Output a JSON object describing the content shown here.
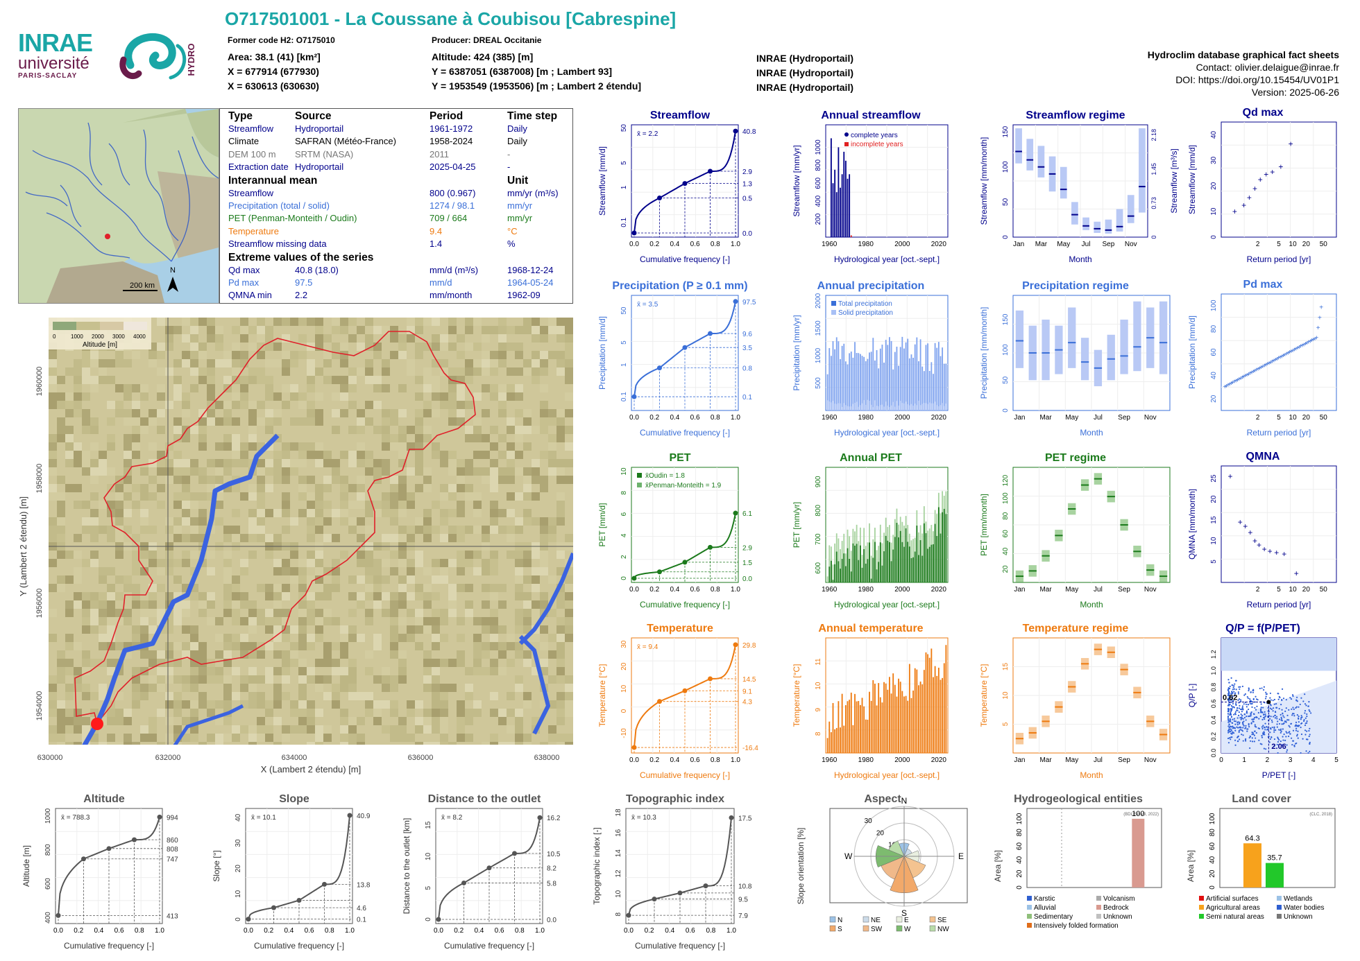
{
  "header": {
    "title": "O717501001 - La Coussane à Coubisou [Cabrespine]",
    "former_code": "Former code H2: O7175010",
    "producer": "Producer: DREAL Occitanie",
    "area": "Area: 38.1 (41) [km²]",
    "altitude": "Altitude: 424 (385) [m]",
    "x93": "X = 677914 (677930)",
    "y93": "Y = 6387051 (6387008) [m ; Lambert 93]",
    "x2e": "X = 630613 (630630)",
    "y2e": "Y = 1953549 (1953506) [m ; Lambert 2 étendu]",
    "src1": "INRAE (Hydroportail)",
    "src2": "INRAE (Hydroportail)",
    "src3": "INRAE (Hydroportail)"
  },
  "database": {
    "name": "Hydroclim database graphical fact sheets",
    "contact": "Contact: olivier.delaigue@inrae.fr",
    "doi": "DOI: https://doi.org/10.15454/UV01P1",
    "version": "Version: 2025-06-26"
  },
  "logos": {
    "inrae": "INRAE",
    "univ": "université",
    "univ2": "PARIS-SACLAY",
    "hydro": "HYDRO"
  },
  "minimap": {
    "scale": "200 km",
    "north": "N"
  },
  "info": {
    "col_type": "Type",
    "col_source": "Source",
    "col_period": "Period",
    "col_step": "Time step",
    "rows": [
      {
        "type": "Streamflow",
        "source": "Hydroportail",
        "period": "1961-1972",
        "step": "Daily"
      },
      {
        "type": "Climate",
        "source": "SAFRAN (Météo-France)",
        "period": "1958-2024",
        "step": "Daily"
      },
      {
        "type": "DEM 100 m",
        "source": "SRTM (NASA)",
        "period": "2011",
        "step": "-"
      },
      {
        "type": "Extraction date",
        "source": "Hydroportail",
        "period": "2025-04-25",
        "step": "-"
      }
    ],
    "interannual_title": "Interannual mean",
    "unit_title": "Unit",
    "means": [
      {
        "name": "Streamflow",
        "value": "800 (0.967)",
        "unit": "mm/yr (m³/s)"
      },
      {
        "name": "Precipitation (total / solid)",
        "value": "1274 / 98.1",
        "unit": "mm/yr"
      },
      {
        "name": "PET (Penman-Monteith / Oudin)",
        "value": "709 / 664",
        "unit": "mm/yr"
      },
      {
        "name": "Temperature",
        "value": "9.4",
        "unit": "°C"
      },
      {
        "name": "Streamflow missing data",
        "value": "1.4",
        "unit": "%"
      }
    ],
    "extreme_title": "Extreme values of the series",
    "extremes": [
      {
        "name": "Qd max",
        "value": "40.8 (18.0)",
        "unit": "mm/d (m³/s)",
        "date": "1968-12-24"
      },
      {
        "name": "Pd max",
        "value": "97.5",
        "unit": "mm/d",
        "date": "1964-05-24"
      },
      {
        "name": "QMNA min",
        "value": "2.2",
        "unit": "mm/month",
        "date": "1962-09"
      }
    ]
  },
  "bigmap": {
    "legend_title": "Altitude [m]",
    "legend_ticks": [
      "0",
      "1000",
      "2000",
      "3000",
      "4000"
    ],
    "xlabel": "X (Lambert 2 étendu) [m]",
    "ylabel": "Y (Lambert 2 étendu) [m]",
    "xticks": [
      "630000",
      "632000",
      "634000",
      "636000",
      "638000"
    ],
    "yticks": [
      "1954000",
      "1956000",
      "1958000",
      "1960000"
    ]
  },
  "colors": {
    "flow": "#00008b",
    "flow_light": "#4169e1",
    "precip": "#3a6fd8",
    "pet": "#1b7a1b",
    "temp": "#ee7a0f",
    "teal": "#1aa6a6",
    "grey": "#555555"
  },
  "chart_data": [
    {
      "id": "streamflow",
      "type": "line",
      "title": "Streamflow",
      "xlabel": "Cumulative frequency [-]",
      "ylabel": "Streamflow [mm/d]",
      "yscale": "log",
      "color": "#00008b",
      "mean_label": "x̄ = 2.2",
      "x": [
        0,
        0.25,
        0.5,
        0.75,
        1
      ],
      "y": [
        0.0,
        0.5,
        1.3,
        2.9,
        40.8
      ],
      "right_ticks": [
        "40.8",
        "2.9",
        "1.3",
        "0.5",
        "0.0"
      ],
      "left_ticks": [
        "50",
        "5",
        "1",
        "0.1"
      ]
    },
    {
      "id": "annual_streamflow",
      "type": "bar",
      "title": "Annual streamflow",
      "xlabel": "Hydrological year [oct.-sept.]",
      "ylabel": "Streamflow [mm/yr]",
      "color": "#00008b",
      "legend": [
        "complete years",
        "incomplete years"
      ],
      "x": [
        1961,
        1962,
        1963,
        1964,
        1965,
        1966,
        1967,
        1968,
        1969,
        1970,
        1971,
        1972
      ],
      "y": [
        1100,
        600,
        750,
        500,
        1000,
        550,
        700,
        950,
        850,
        650,
        700,
        20
      ],
      "complete": [
        1,
        1,
        1,
        1,
        1,
        1,
        1,
        1,
        1,
        1,
        1,
        0
      ],
      "xlim": [
        1958,
        2025
      ],
      "ylim": [
        0,
        1250
      ],
      "xticks": [
        "1960",
        "1980",
        "2000",
        "2020"
      ],
      "yticks": [
        "200",
        "400",
        "600",
        "800",
        "1000"
      ]
    },
    {
      "id": "streamflow_regime",
      "type": "box",
      "title": "Streamflow regime",
      "xlabel": "Month",
      "ylabel": "Streamflow [mm/month]",
      "right_label": "Streamflow [m³/s]",
      "color": "#4169e1",
      "categories": [
        "Jan",
        "Feb",
        "Mar",
        "Apr",
        "May",
        "Jun",
        "Jul",
        "Aug",
        "Sep",
        "Oct",
        "Nov",
        "Dec"
      ],
      "q1": [
        105,
        95,
        85,
        65,
        55,
        18,
        10,
        6,
        5,
        8,
        20,
        35
      ],
      "q3": [
        155,
        140,
        130,
        115,
        100,
        50,
        28,
        22,
        25,
        40,
        60,
        155
      ],
      "median": [
        122,
        110,
        100,
        90,
        68,
        32,
        16,
        12,
        10,
        15,
        30,
        72
      ],
      "ylim": [
        0,
        160
      ],
      "yticks": [
        "0",
        "50",
        "100",
        "150"
      ],
      "right_ticks": [
        "0",
        "0.73",
        "1.45",
        "2.18"
      ]
    },
    {
      "id": "qd_max",
      "type": "scatter",
      "title": "Qd max",
      "xlabel": "Return period [yr]",
      "ylabel": "Streamflow [mm/d]",
      "x": [
        1.1,
        1.3,
        1.5,
        1.8,
        2.2,
        2.8,
        3.7,
        5.5,
        9
      ],
      "y": [
        10,
        12.5,
        15.5,
        19,
        22.5,
        24.5,
        25.5,
        27.5,
        36.5
      ],
      "xticks": [
        "2",
        "5",
        "10",
        "20",
        "50"
      ],
      "yticks": [
        "0",
        "10",
        "20",
        "30",
        "40"
      ],
      "ylim": [
        0,
        45
      ]
    },
    {
      "id": "precipitation",
      "type": "line",
      "title": "Precipitation (P ≥ 0.1 mm)",
      "xlabel": "Cumulative frequency [-]",
      "ylabel": "Precipitation [mm/d]",
      "yscale": "log",
      "color": "#3a6fd8",
      "mean_label": "x̄ = 3.5",
      "x": [
        0,
        0.25,
        0.5,
        0.75,
        1
      ],
      "y": [
        0.1,
        0.8,
        3.5,
        9.6,
        97.5
      ],
      "right_ticks": [
        "97.5",
        "9.6",
        "3.5",
        "0.8",
        "0.1"
      ],
      "left_ticks": [
        "50",
        "5",
        "1",
        "0.1"
      ]
    },
    {
      "id": "annual_precipitation",
      "type": "bar",
      "title": "Annual precipitation",
      "xlabel": "Hydrological year [oct.-sept.]",
      "ylabel": "Precipitation [mm/yr]",
      "color": "#3a6fd8",
      "legend": [
        "Total precipitation",
        "Solid precipitation"
      ],
      "xlim": [
        1958,
        2025
      ],
      "ylim": [
        0,
        2100
      ],
      "xticks": [
        "1960",
        "1980",
        "2000",
        "2020"
      ],
      "yticks": [
        "500",
        "1000",
        "1500",
        "2000"
      ]
    },
    {
      "id": "precipitation_regime",
      "type": "box",
      "title": "Precipitation regime",
      "xlabel": "Month",
      "ylabel": "Precipitation [mm/month]",
      "color": "#3a6fd8",
      "categories": [
        "Jan",
        "Feb",
        "Mar",
        "Apr",
        "May",
        "Jun",
        "Jul",
        "Aug",
        "Sep",
        "Oct",
        "Nov",
        "Dec"
      ],
      "q1": [
        70,
        50,
        50,
        60,
        70,
        50,
        40,
        50,
        60,
        65,
        70,
        60
      ],
      "q3": [
        165,
        140,
        150,
        140,
        170,
        120,
        100,
        125,
        150,
        180,
        170,
        180
      ],
      "median": [
        115,
        95,
        95,
        100,
        112,
        80,
        70,
        85,
        90,
        105,
        120,
        112
      ],
      "ylim": [
        0,
        190
      ],
      "yticks": [
        "0",
        "50",
        "100",
        "150"
      ]
    },
    {
      "id": "pd_max",
      "type": "scatter",
      "title": "Pd max",
      "xlabel": "Return period [yr]",
      "ylabel": "Precipitation [mm/d]",
      "xticks": [
        "2",
        "5",
        "10",
        "20",
        "50"
      ],
      "yticks": [
        "20",
        "40",
        "60",
        "80",
        "100"
      ],
      "ylim": [
        10,
        110
      ]
    },
    {
      "id": "pet",
      "type": "line",
      "title": "PET",
      "xlabel": "Cumulative frequency [-]",
      "ylabel": "PET [mm/d]",
      "color": "#1b7a1b",
      "legend": [
        "x̄Oudin = 1.8",
        "x̄Penman-Monteith = 1.9"
      ],
      "x": [
        0,
        0.25,
        0.5,
        0.75,
        1
      ],
      "y": [
        0.0,
        0.6,
        1.5,
        2.9,
        6.1
      ],
      "right_ticks": [
        "6.1",
        "2.9",
        "1.5",
        "0.0"
      ],
      "left_ticks": [
        "0",
        "2",
        "4",
        "6",
        "8",
        "10"
      ],
      "ylim": [
        0,
        10
      ]
    },
    {
      "id": "annual_pet",
      "type": "bar",
      "title": "Annual PET",
      "xlabel": "Hydrological year [oct.-sept.]",
      "ylabel": "PET [mm/yr]",
      "color": "#1b7a1b",
      "xlim": [
        1958,
        2025
      ],
      "ylim": [
        550,
        950
      ],
      "xticks": [
        "1960",
        "1980",
        "2000",
        "2020"
      ],
      "yticks": [
        "600",
        "700",
        "800",
        "900"
      ]
    },
    {
      "id": "pet_regime",
      "type": "box",
      "title": "PET regime",
      "xlabel": "Month",
      "ylabel": "PET [mm/month]",
      "color": "#1b7a1b",
      "categories": [
        "Jan",
        "Feb",
        "Mar",
        "Apr",
        "May",
        "Jun",
        "Jul",
        "Aug",
        "Sep",
        "Oct",
        "Nov",
        "Dec"
      ],
      "median": [
        12,
        18,
        35,
        58,
        88,
        115,
        122,
        102,
        70,
        40,
        19,
        12
      ],
      "ylim": [
        5,
        135
      ],
      "yticks": [
        "20",
        "40",
        "60",
        "80",
        "100",
        "120"
      ]
    },
    {
      "id": "qmna",
      "type": "scatter",
      "title": "QMNA",
      "xlabel": "Return period [yr]",
      "ylabel": "QMNA [mm/month]",
      "x": [
        1.05,
        1.2,
        1.35,
        1.55,
        1.8,
        2.1,
        2.6,
        3.3,
        4.5,
        6.5,
        12
      ],
      "y": [
        25.5,
        14.5,
        13.5,
        12,
        10,
        9,
        8,
        7.5,
        7.2,
        6.8,
        2.2
      ],
      "xticks": [
        "2",
        "5",
        "10",
        "20",
        "50"
      ],
      "yticks": [
        "5",
        "10",
        "15",
        "20",
        "25"
      ],
      "ylim": [
        0,
        28
      ]
    },
    {
      "id": "temperature",
      "type": "line",
      "title": "Temperature",
      "xlabel": "Cumulative frequency [-]",
      "ylabel": "Temperature [°C]",
      "color": "#ee7a0f",
      "mean_label": "x̄ = 9.4",
      "x": [
        0,
        0.25,
        0.5,
        0.75,
        1
      ],
      "y": [
        -16.4,
        4.3,
        9.1,
        14.5,
        29.8
      ],
      "right_ticks": [
        "29.8",
        "14.5",
        "9.1",
        "4.3",
        "-16.4"
      ],
      "left_ticks": [
        "-10",
        "0",
        "10",
        "20",
        "30"
      ],
      "ylim": [
        -17,
        31
      ]
    },
    {
      "id": "annual_temperature",
      "type": "bar",
      "title": "Annual temperature",
      "xlabel": "Hydrological year [oct.-sept.]",
      "ylabel": "Temperature [°C]",
      "color": "#ee7a0f",
      "xlim": [
        1958,
        2025
      ],
      "ylim": [
        7.2,
        12
      ],
      "xticks": [
        "1960",
        "1980",
        "2000",
        "2020"
      ],
      "yticks": [
        "8",
        "9",
        "10",
        "11"
      ]
    },
    {
      "id": "temperature_regime",
      "type": "box",
      "title": "Temperature regime",
      "xlabel": "Month",
      "ylabel": "Temperature [°C]",
      "color": "#ee7a0f",
      "categories": [
        "Jan",
        "Feb",
        "Mar",
        "Apr",
        "May",
        "Jun",
        "Jul",
        "Aug",
        "Sep",
        "Oct",
        "Nov",
        "Dec"
      ],
      "median": [
        2.5,
        3.5,
        5.5,
        8,
        11.5,
        15.5,
        18,
        17.5,
        14.5,
        10.5,
        5.5,
        3.2
      ],
      "ylim": [
        0,
        20
      ],
      "yticks": [
        "5",
        "10",
        "15"
      ]
    },
    {
      "id": "qp_budyko",
      "type": "scatter",
      "title": "Q/P = f(P/PET)",
      "xlabel": "P/PET [-]",
      "ylabel": "Q/P [-]",
      "point": {
        "x": 2.06,
        "y": 0.62
      },
      "point_labels": [
        "0.62",
        "2.06"
      ],
      "xticks": [
        "0",
        "1",
        "2",
        "3",
        "4",
        "5"
      ],
      "yticks": [
        "0.0",
        "0.2",
        "0.4",
        "0.6",
        "0.8",
        "1.0",
        "1.2"
      ],
      "xlim": [
        0,
        5
      ],
      "ylim": [
        0,
        1.4
      ]
    },
    {
      "id": "altitude",
      "type": "line",
      "title": "Altitude",
      "xlabel": "Cumulative frequency [-]",
      "ylabel": "Altitude [m]",
      "mean_label": "x̄ = 788.3",
      "x": [
        0,
        0.25,
        0.5,
        0.75,
        1
      ],
      "y": [
        413,
        747,
        808,
        860,
        994
      ],
      "right_ticks": [
        "994",
        "860",
        "808",
        "747",
        "413"
      ],
      "left_ticks": [
        "400",
        "600",
        "800",
        "1000"
      ],
      "ylim": [
        390,
        1020
      ]
    },
    {
      "id": "slope",
      "type": "line",
      "title": "Slope",
      "xlabel": "Cumulative frequency [-]",
      "ylabel": "Slope [°]",
      "mean_label": "x̄ = 10.1",
      "x": [
        0,
        0.25,
        0.5,
        0.75,
        1
      ],
      "y": [
        0.1,
        4.6,
        7.5,
        13.8,
        40.9
      ],
      "right_ticks": [
        "40.9",
        "13.8",
        "4.6",
        "0.1"
      ],
      "left_ticks": [
        "0",
        "10",
        "20",
        "30",
        "40"
      ],
      "ylim": [
        0,
        42
      ]
    },
    {
      "id": "distance_outlet",
      "type": "line",
      "title": "Distance to the outlet",
      "xlabel": "Cumulative frequency [-]",
      "ylabel": "Distance to the outlet [km]",
      "mean_label": "x̄ = 8.2",
      "x": [
        0,
        0.25,
        0.5,
        0.75,
        1
      ],
      "y": [
        0.0,
        5.8,
        8.2,
        10.5,
        16.2
      ],
      "right_ticks": [
        "16.2",
        "10.5",
        "8.2",
        "5.8",
        "0.0"
      ],
      "left_ticks": [
        "0",
        "5",
        "10",
        "15"
      ],
      "ylim": [
        0,
        17
      ]
    },
    {
      "id": "topographic_index",
      "type": "line",
      "title": "Topographic index",
      "xlabel": "Cumulative frequency [-]",
      "ylabel": "Topographic index [-]",
      "mean_label": "x̄ = 10.3",
      "x": [
        0,
        0.25,
        0.5,
        0.75,
        1
      ],
      "y": [
        7.9,
        9.5,
        10.1,
        10.8,
        17.5
      ],
      "right_ticks": [
        "17.5",
        "10.8",
        "9.5",
        "7.9"
      ],
      "left_ticks": [
        "8",
        "10",
        "12",
        "14",
        "16",
        "18"
      ],
      "ylim": [
        7.5,
        18
      ]
    },
    {
      "id": "aspect",
      "type": "pie",
      "title": "Aspect",
      "ylabel": "Slope orientation [%]",
      "categories": [
        "N",
        "NE",
        "E",
        "SE",
        "S",
        "SW",
        "W",
        "NW"
      ],
      "values": [
        8,
        5,
        9,
        14,
        22,
        15,
        17,
        10
      ],
      "rings": [
        "10",
        "20",
        "30"
      ],
      "legend": [
        "N",
        "NE",
        "E",
        "SE",
        "S",
        "SW",
        "W",
        "NW"
      ]
    },
    {
      "id": "hydrogeology",
      "type": "bar",
      "title": "Hydrogeological entities",
      "ylabel": "Area [%]",
      "source": "(BDLISA V3, 2022)",
      "value": 100,
      "value_label": "100",
      "legend": [
        "Karstic",
        "Alluvial",
        "Sedimentary",
        "Intensively folded formation",
        "Volcanism",
        "Bedrock",
        "Unknown"
      ],
      "yticks": [
        "0",
        "20",
        "40",
        "60",
        "80",
        "100"
      ]
    },
    {
      "id": "land_cover",
      "type": "bar",
      "title": "Land cover",
      "ylabel": "Area [%]",
      "source": "(CLC, 2018)",
      "categories": [
        "Agricultural areas",
        "Semi natural areas"
      ],
      "values": [
        64.3,
        35.7
      ],
      "value_labels": [
        "64.3",
        "35.7"
      ],
      "legend": [
        "Artificial surfaces",
        "Agricultural areas",
        "Semi natural areas",
        "Wetlands",
        "Water bodies",
        "Unknown"
      ],
      "yticks": [
        "0",
        "20",
        "40",
        "60",
        "80",
        "100"
      ]
    }
  ]
}
